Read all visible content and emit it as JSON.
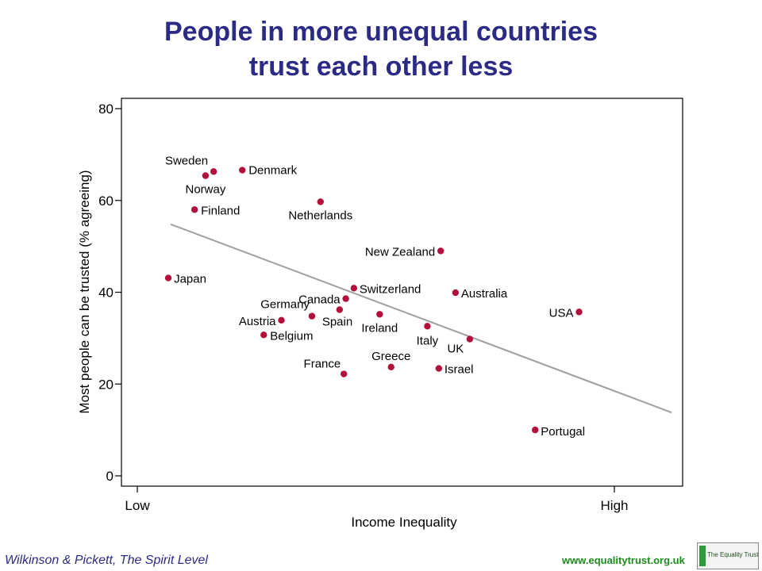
{
  "title_lines": [
    "People in more unequal countries",
    "trust each other less"
  ],
  "footer": {
    "source": "Wilkinson & Pickett, The Spirit Level",
    "url": "www.equalitytrust.org.uk",
    "logo_text": "The Equality Trust"
  },
  "colors": {
    "title": "#2b2b86",
    "point": "#b0103a",
    "fit_line": "#a0a0a0",
    "url": "#1f8a1f"
  },
  "chart_data": {
    "type": "scatter",
    "xlabel": "Income Inequality",
    "ylabel": "Most people can be trusted (% agreeing)",
    "xlim": [
      0,
      1.14
    ],
    "ylim": [
      0,
      80
    ],
    "x_ticks": [
      {
        "value": 0,
        "label": "Low"
      },
      {
        "value": 1,
        "label": "High"
      }
    ],
    "y_ticks": [
      0,
      20,
      40,
      60,
      80
    ],
    "grid": false,
    "fit_line": {
      "x": [
        0.07,
        1.12
      ],
      "y": [
        54.8,
        13.8
      ]
    },
    "points": [
      {
        "label": "Sweden",
        "x": 0.16,
        "y": 66.3
      },
      {
        "label": "Norway",
        "x": 0.143,
        "y": 65.4
      },
      {
        "label": "Denmark",
        "x": 0.22,
        "y": 66.6
      },
      {
        "label": "Finland",
        "x": 0.12,
        "y": 58.0
      },
      {
        "label": "Netherlands",
        "x": 0.384,
        "y": 59.7
      },
      {
        "label": "Japan",
        "x": 0.065,
        "y": 43.1
      },
      {
        "label": "New Zealand",
        "x": 0.636,
        "y": 49.0
      },
      {
        "label": "Switzerland",
        "x": 0.454,
        "y": 40.9
      },
      {
        "label": "Australia",
        "x": 0.667,
        "y": 39.9
      },
      {
        "label": "Canada",
        "x": 0.437,
        "y": 38.6
      },
      {
        "label": "Germany",
        "x": 0.366,
        "y": 34.8
      },
      {
        "label": "Spain",
        "x": 0.424,
        "y": 36.2
      },
      {
        "label": "Ireland",
        "x": 0.508,
        "y": 35.2
      },
      {
        "label": "Austria",
        "x": 0.302,
        "y": 33.9
      },
      {
        "label": "Italy",
        "x": 0.608,
        "y": 32.6
      },
      {
        "label": "USA",
        "x": 0.926,
        "y": 35.7
      },
      {
        "label": "Belgium",
        "x": 0.265,
        "y": 30.7
      },
      {
        "label": "UK",
        "x": 0.697,
        "y": 29.8
      },
      {
        "label": "Greece",
        "x": 0.532,
        "y": 23.7
      },
      {
        "label": "Israel",
        "x": 0.632,
        "y": 23.4
      },
      {
        "label": "France",
        "x": 0.433,
        "y": 22.2
      },
      {
        "label": "Portugal",
        "x": 0.834,
        "y": 10.0
      }
    ]
  }
}
